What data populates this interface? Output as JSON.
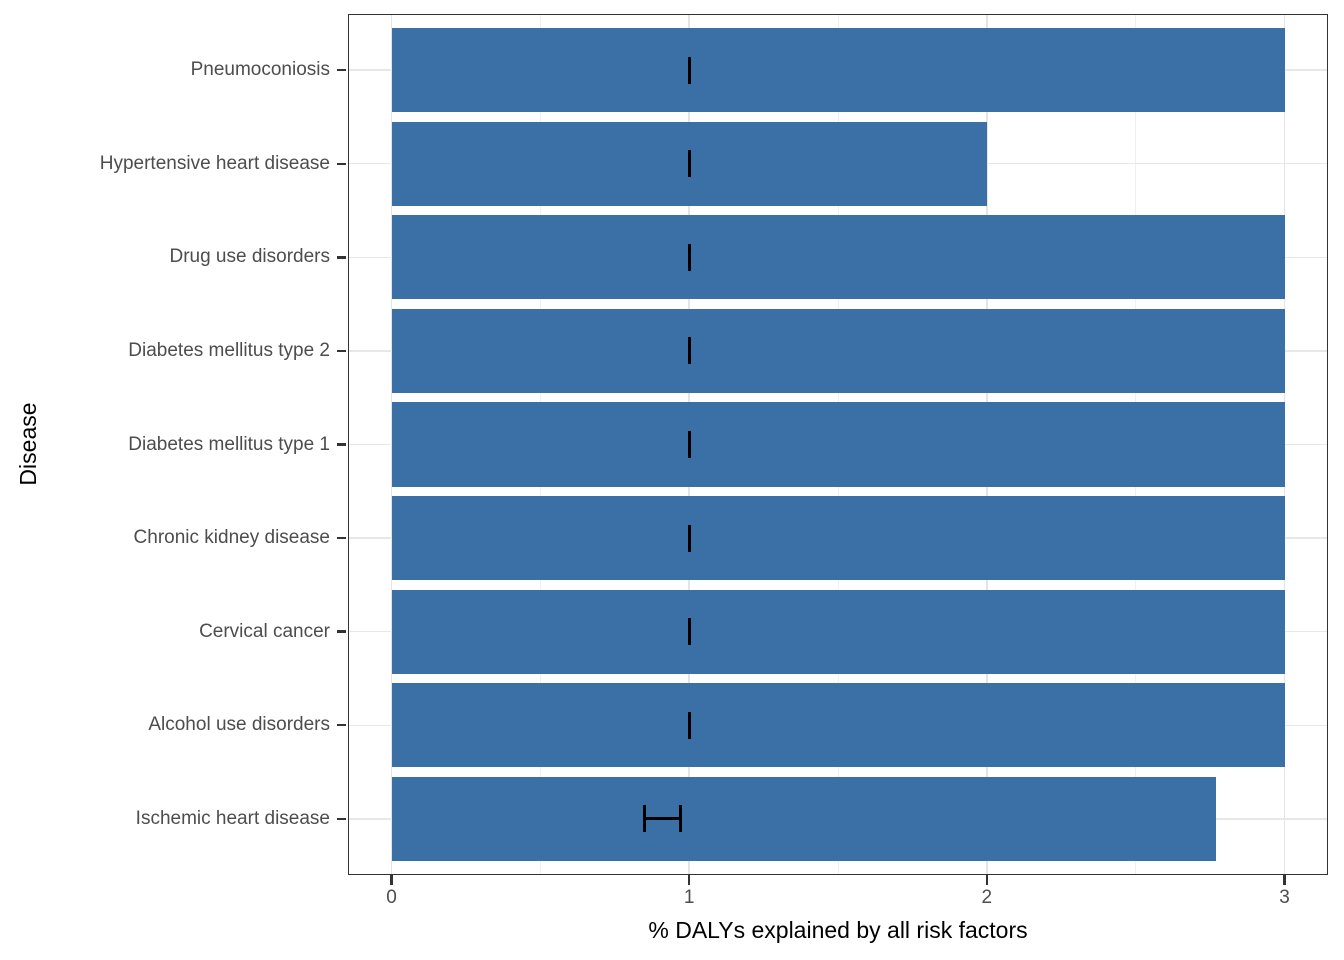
{
  "figure": {
    "x_axis_title": "% DALYs explained by all risk factors",
    "y_axis_title": "Disease"
  },
  "chart_data": {
    "type": "bar",
    "orientation": "horizontal",
    "title": "",
    "xlabel": "% DALYs explained by all risk factors",
    "ylabel": "Disease",
    "xlim": [
      0,
      3
    ],
    "x_major_ticks": [
      0,
      1,
      2,
      3
    ],
    "x_minor_gridlines": [
      0.5,
      1.5,
      2.5
    ],
    "grid": "vertical major+minor, horizontal major at category centers",
    "legend_position": "none",
    "bar_color": "#3b70a6",
    "error_bar_color": "#000000",
    "categories": [
      "Pneumoconiosis",
      "Hypertensive heart disease",
      "Drug use disorders",
      "Diabetes mellitus type 2",
      "Diabetes mellitus type 1",
      "Chronic kidney disease",
      "Cervical cancer",
      "Alcohol use disorders",
      "Ischemic heart disease"
    ],
    "values": [
      3.0,
      2.0,
      3.0,
      3.0,
      3.0,
      3.0,
      3.0,
      3.0,
      2.77
    ],
    "points": [
      {
        "label": "Pneumoconiosis",
        "value": 3.0,
        "err_low": 1.0,
        "err_high": 1.0
      },
      {
        "label": "Hypertensive heart disease",
        "value": 2.0,
        "err_low": 1.0,
        "err_high": 1.0
      },
      {
        "label": "Drug use disorders",
        "value": 3.0,
        "err_low": 1.0,
        "err_high": 1.0
      },
      {
        "label": "Diabetes mellitus type 2",
        "value": 3.0,
        "err_low": 1.0,
        "err_high": 1.0
      },
      {
        "label": "Diabetes mellitus type 1",
        "value": 3.0,
        "err_low": 1.0,
        "err_high": 1.0
      },
      {
        "label": "Chronic kidney disease",
        "value": 3.0,
        "err_low": 1.0,
        "err_high": 1.0
      },
      {
        "label": "Cervical cancer",
        "value": 3.0,
        "err_low": 1.0,
        "err_high": 1.0
      },
      {
        "label": "Alcohol use disorders",
        "value": 3.0,
        "err_low": 1.0,
        "err_high": 1.0
      },
      {
        "label": "Ischemic heart disease",
        "value": 2.77,
        "err_low": 0.85,
        "err_high": 0.97
      }
    ]
  }
}
